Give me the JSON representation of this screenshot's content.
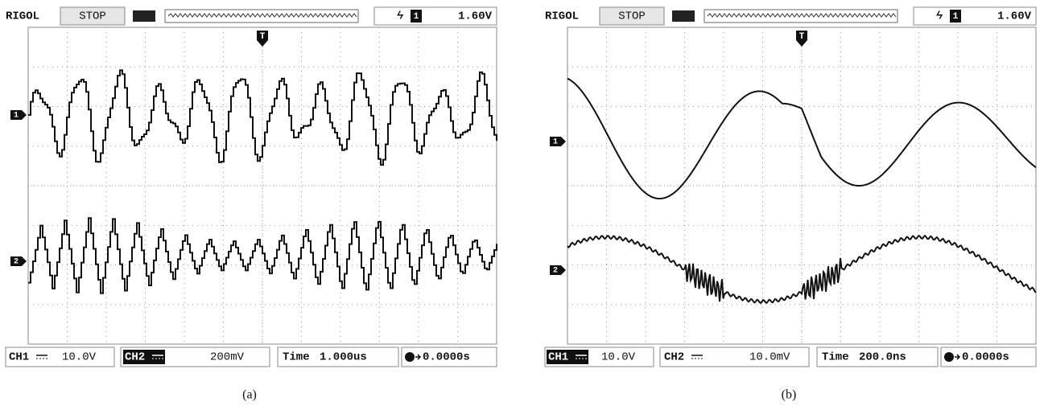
{
  "panels": [
    {
      "brand": "RIGOL",
      "status": "STOP",
      "trigger_channel": "1",
      "trigger_level": "1.60V",
      "trigger_marker": "T",
      "ch1_marker": "1",
      "ch2_marker": "2",
      "ch1_label": "CH1",
      "ch1_scale": "10.0V",
      "ch2_label": "CH2",
      "ch2_scale": "200mV",
      "time_label": "Time",
      "time_scale": "1.000us",
      "trigger_offset": "0.0000s",
      "caption": "(a)"
    },
    {
      "brand": "RIGOL",
      "status": "STOP",
      "trigger_channel": "1",
      "trigger_level": "1.60V",
      "trigger_marker": "T",
      "ch1_marker": "1",
      "ch2_marker": "2",
      "ch1_label": "CH1",
      "ch1_scale": "10.0V",
      "ch2_label": "CH2",
      "ch2_scale": "10.0mV",
      "time_label": "Time",
      "time_scale": "200.0ns",
      "trigger_offset": "0.0000s",
      "caption": "(b)"
    }
  ]
}
